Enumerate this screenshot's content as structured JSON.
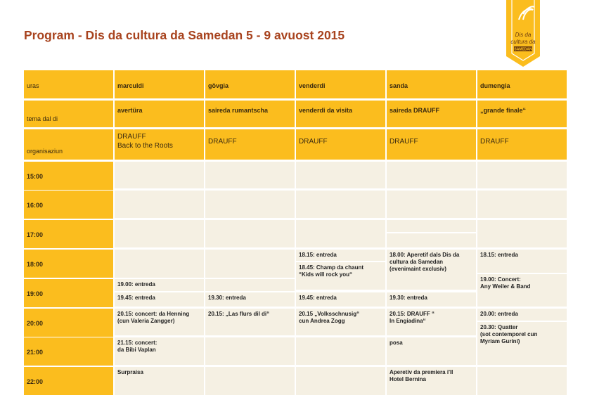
{
  "title": "Program - Dis da cultura da Samedan 5 - 9 avuost 2015",
  "logo": {
    "lines": [
      "Dis da",
      "cultura da"
    ],
    "place": "SAMEDAN"
  },
  "table": {
    "row_labels": [
      "uras",
      "tema dal di",
      "organisaziun"
    ],
    "days": [
      {
        "name": "marculdi",
        "theme": "avertüra",
        "organizer": [
          "DRAUFF",
          "Back to the Roots"
        ]
      },
      {
        "name": "gövgia",
        "theme": "saireda rumantscha",
        "organizer": [
          "DRAUFF"
        ]
      },
      {
        "name": "venderdi",
        "theme": "venderdi da visita",
        "organizer": [
          "DRAUFF"
        ]
      },
      {
        "name": "sanda",
        "theme": "saireda DRAUFF",
        "organizer": [
          "DRAUFF"
        ]
      },
      {
        "name": "dumengia",
        "theme": "„grande finale“",
        "organizer": [
          "DRAUFF"
        ]
      }
    ],
    "times": [
      "15:00",
      "16:00",
      "17:00",
      "18:00",
      "19:00",
      "20:00",
      "21:00",
      "22:00"
    ],
    "events": [
      [
        [
          "19.00: entreda"
        ],
        [
          "19.45: entreda"
        ],
        [
          "20.15: concert: da Henning",
          "(cun Valeria Zangger)"
        ],
        [
          "21.15: concert:",
          "da Bibi Vaplan"
        ],
        [
          "Surpraisa"
        ]
      ],
      [
        [
          "19.30: entreda"
        ],
        [
          "20.15: „Las flurs dil di“"
        ]
      ],
      [
        [
          "18.15: entreda"
        ],
        [
          "18.45: Champ da chaunt",
          "“Kids will rock you“"
        ],
        [
          "19.45: entreda"
        ],
        [
          "20.15 „Volksschnusig“",
          "cun Andrea Zogg"
        ]
      ],
      [
        [
          "18.00: Aperetif dals Dis da",
          "cultura da Samedan",
          "(evenimaint exclusiv)"
        ],
        [
          "19.30: entreda"
        ],
        [
          "20.15: DRAUFF “",
          "In Engiadina“"
        ],
        [
          "posa"
        ],
        [
          "Aperetiv da premiera i'll",
          "Hotel Bernina"
        ]
      ],
      [
        [
          "18.15: entreda"
        ],
        [
          "19.00: Concert:",
          "Any Weiler & Band"
        ],
        [
          "20.00: entreda"
        ],
        [
          "20.30: Quatter",
          "(sot contemporel cun",
          "Myriam Gurini)"
        ]
      ]
    ]
  }
}
